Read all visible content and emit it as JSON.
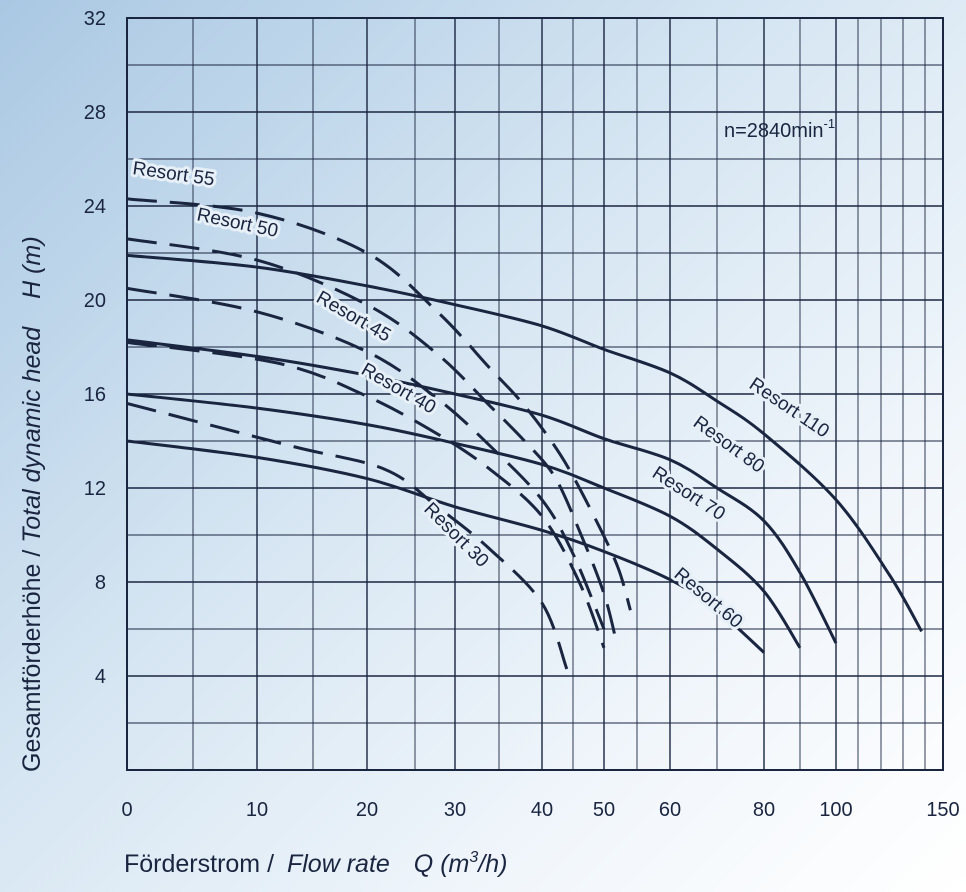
{
  "chart_data": {
    "type": "line",
    "x_scale": "nonlinear",
    "x_ticks": [
      "0",
      "10",
      "20",
      "30",
      "40",
      "50",
      "60",
      "80",
      "100",
      "150"
    ],
    "y_ticks": [
      "4",
      "8",
      "12",
      "16",
      "20",
      "24",
      "28",
      "32"
    ],
    "ylim": [
      0,
      32
    ],
    "grid": true,
    "xlabel_de": "Förderstrom / ",
    "xlabel_en": "Flow rate",
    "xlabel_symbol": "Q (m",
    "xlabel_sup": "3",
    "xlabel_tail": "/h)",
    "ylabel_de": "Gesamtförderhöhe / ",
    "ylabel_en": "Total dynamic head",
    "ylabel_symbol": "H (m)",
    "annotation_text": "n=2840min",
    "annotation_sup": "-1",
    "series": [
      {
        "name": "Resort 30",
        "dashed": true,
        "points": [
          [
            0,
            15.6
          ],
          [
            13,
            13.8
          ],
          [
            22,
            12.8
          ],
          [
            28,
            11.2
          ],
          [
            34,
            9.4
          ],
          [
            40,
            7.1
          ],
          [
            44,
            4.3
          ]
        ]
      },
      {
        "name": "Resort 40",
        "dashed": true,
        "points": [
          [
            0,
            18.2
          ],
          [
            12,
            17.3
          ],
          [
            20,
            15.9
          ],
          [
            28,
            14.3
          ],
          [
            34,
            12.8
          ],
          [
            40,
            10.8
          ],
          [
            46,
            8.0
          ],
          [
            50,
            5.2
          ]
        ]
      },
      {
        "name": "Resort 45",
        "dashed": true,
        "points": [
          [
            0,
            20.5
          ],
          [
            10,
            19.5
          ],
          [
            20,
            17.8
          ],
          [
            28,
            15.8
          ],
          [
            34,
            13.8
          ],
          [
            40,
            11.5
          ],
          [
            45,
            9.2
          ],
          [
            50,
            6.0
          ]
        ]
      },
      {
        "name": "Resort 50",
        "dashed": true,
        "points": [
          [
            0,
            22.6
          ],
          [
            10,
            21.7
          ],
          [
            20,
            19.8
          ],
          [
            28,
            17.7
          ],
          [
            34,
            15.5
          ],
          [
            38,
            14.0
          ],
          [
            42,
            12.5
          ],
          [
            46,
            10.2
          ],
          [
            50,
            7.5
          ],
          [
            52,
            5.3
          ]
        ]
      },
      {
        "name": "Resort 55",
        "dashed": true,
        "points": [
          [
            0,
            24.3
          ],
          [
            10,
            23.7
          ],
          [
            20,
            22.0
          ],
          [
            28,
            19.5
          ],
          [
            34,
            17.1
          ],
          [
            38,
            15.5
          ],
          [
            43,
            13.4
          ],
          [
            48,
            11.0
          ],
          [
            52,
            8.7
          ],
          [
            54,
            6.8
          ]
        ]
      },
      {
        "name": "Resort 60",
        "dashed": false,
        "points": [
          [
            0,
            14.0
          ],
          [
            10,
            13.3
          ],
          [
            20,
            12.4
          ],
          [
            30,
            11.2
          ],
          [
            40,
            10.2
          ],
          [
            50,
            9.3
          ],
          [
            60,
            8.1
          ],
          [
            70,
            6.8
          ],
          [
            80,
            5.0
          ]
        ]
      },
      {
        "name": "Resort 70",
        "dashed": false,
        "points": [
          [
            0,
            16.0
          ],
          [
            10,
            15.4
          ],
          [
            20,
            14.7
          ],
          [
            30,
            13.9
          ],
          [
            40,
            13.0
          ],
          [
            50,
            12.0
          ],
          [
            60,
            10.8
          ],
          [
            70,
            9.4
          ],
          [
            80,
            7.6
          ],
          [
            90,
            5.2
          ]
        ]
      },
      {
        "name": "Resort 80",
        "dashed": false,
        "points": [
          [
            0,
            18.3
          ],
          [
            10,
            17.6
          ],
          [
            20,
            16.8
          ],
          [
            30,
            16.0
          ],
          [
            40,
            15.1
          ],
          [
            50,
            14.1
          ],
          [
            60,
            13.2
          ],
          [
            70,
            12.0
          ],
          [
            80,
            10.6
          ],
          [
            90,
            8.4
          ],
          [
            100,
            5.4
          ]
        ]
      },
      {
        "name": "Resort 110",
        "dashed": false,
        "points": [
          [
            0,
            21.9
          ],
          [
            10,
            21.4
          ],
          [
            20,
            20.6
          ],
          [
            30,
            19.8
          ],
          [
            40,
            18.9
          ],
          [
            50,
            17.9
          ],
          [
            60,
            16.9
          ],
          [
            70,
            15.7
          ],
          [
            80,
            14.3
          ],
          [
            100,
            11.5
          ],
          [
            125,
            8.3
          ],
          [
            140,
            5.9
          ]
        ]
      }
    ]
  }
}
